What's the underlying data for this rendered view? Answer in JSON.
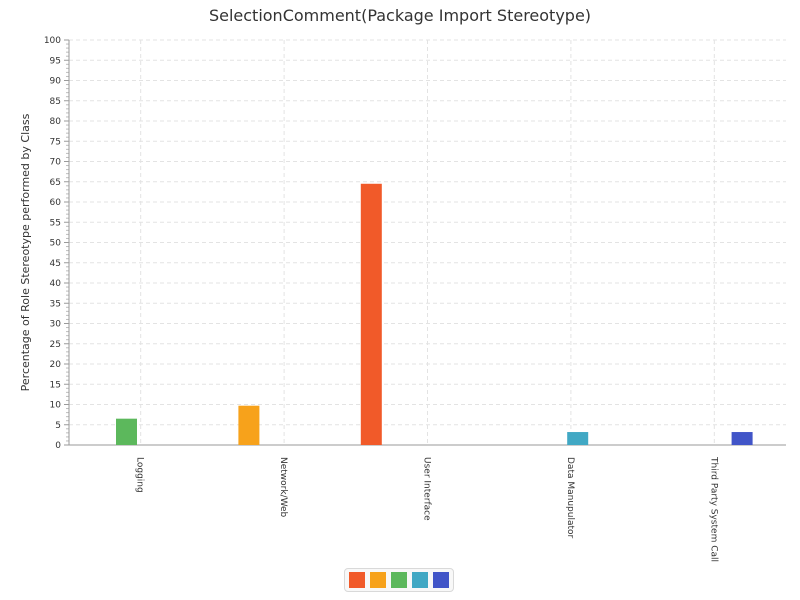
{
  "chart_data": {
    "type": "bar",
    "title": "SelectionComment(Package Import Stereotype)",
    "xlabel": "",
    "ylabel": "Percentage of Role Stereotype performed by Class",
    "ylim": [
      0,
      100
    ],
    "ytick_step": 5,
    "grid": true,
    "legend_position": "bottom",
    "categories": [
      "Logging",
      "Network/Web",
      "User Interface",
      "Data Manupulator",
      "Third Party System Call"
    ],
    "series": [
      {
        "color": "#f15a29",
        "values": [
          0,
          0,
          64.5,
          0,
          0
        ]
      },
      {
        "color": "#f7a21b",
        "values": [
          0,
          9.7,
          0,
          0,
          0
        ]
      },
      {
        "color": "#5cb85c",
        "values": [
          6.5,
          0,
          0,
          0,
          0
        ]
      },
      {
        "color": "#41a8c4",
        "values": [
          0,
          0,
          0,
          3.2,
          0
        ]
      },
      {
        "color": "#4155c8",
        "values": [
          0,
          0,
          0,
          0,
          3.2
        ]
      }
    ]
  }
}
